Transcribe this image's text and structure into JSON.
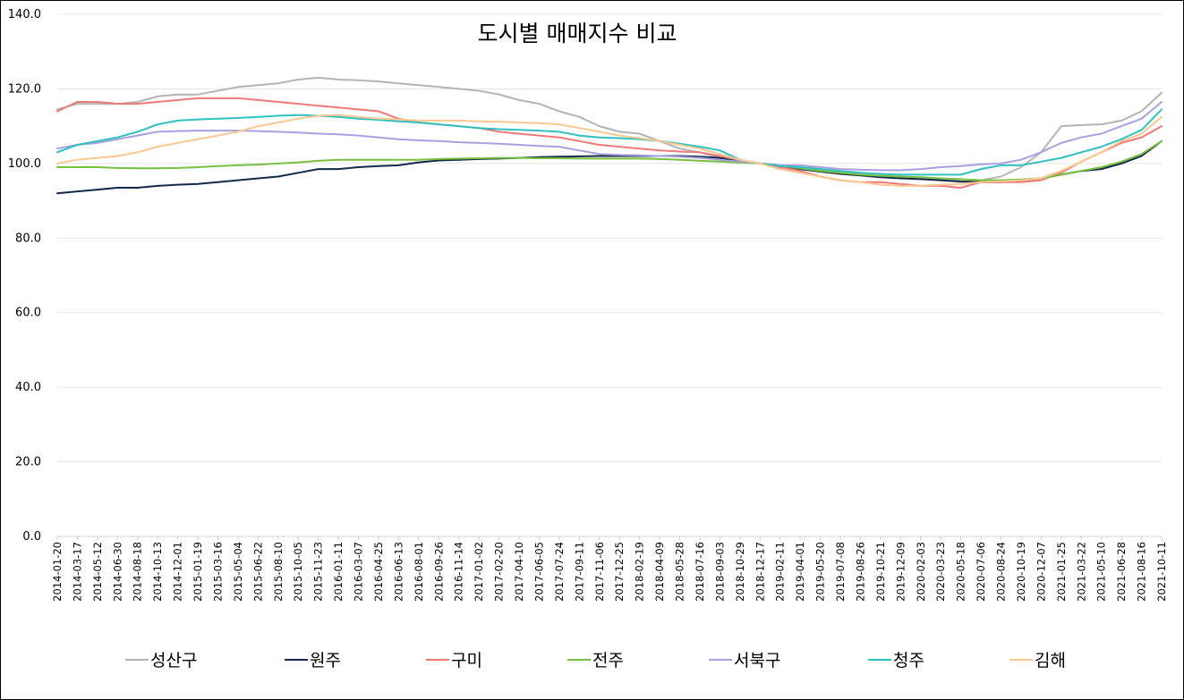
{
  "chart_data": {
    "type": "line",
    "title": "도시별 매매지수 비교",
    "xlabel": "",
    "ylabel": "",
    "ylim": [
      0,
      140
    ],
    "yticks": [
      "0.0",
      "20.0",
      "40.0",
      "60.0",
      "80.0",
      "100.0",
      "120.0",
      "140.0"
    ],
    "grid": true,
    "legend_position": "bottom",
    "x": [
      "2014-01-20",
      "2014-03-17",
      "2014-05-12",
      "2014-06-30",
      "2014-08-18",
      "2014-10-13",
      "2014-12-01",
      "2015-01-19",
      "2015-03-16",
      "2015-05-04",
      "2015-06-22",
      "2015-08-10",
      "2015-10-05",
      "2015-11-23",
      "2016-01-11",
      "2016-03-07",
      "2016-04-25",
      "2016-06-13",
      "2016-08-01",
      "2016-09-26",
      "2016-11-14",
      "2017-01-02",
      "2017-02-20",
      "2017-04-10",
      "2017-06-05",
      "2017-07-24",
      "2017-09-11",
      "2017-11-06",
      "2017-12-25",
      "2018-02-19",
      "2018-04-09",
      "2018-05-28",
      "2018-07-16",
      "2018-09-03",
      "2018-10-29",
      "2018-12-17",
      "2019-02-11",
      "2019-04-01",
      "2019-05-20",
      "2019-07-08",
      "2019-08-26",
      "2019-10-21",
      "2019-12-09",
      "2020-02-03",
      "2020-03-23",
      "2020-05-18",
      "2020-07-06",
      "2020-08-24",
      "2020-10-19",
      "2020-12-07",
      "2021-01-25",
      "2021-03-22",
      "2021-05-10",
      "2021-06-28",
      "2021-08-16",
      "2021-10-11"
    ],
    "series": [
      {
        "name": "성산구",
        "color": "#b4b4b4",
        "values": [
          114.5,
          116,
          116,
          116,
          116.5,
          118,
          118.5,
          118.5,
          119.5,
          120.5,
          121,
          121.5,
          122.5,
          123,
          122.5,
          122.3,
          122,
          121.5,
          121,
          120.5,
          120,
          119.5,
          118.5,
          117,
          116,
          114,
          112.5,
          110,
          108.5,
          108,
          106,
          104,
          103,
          101.5,
          100.5,
          100,
          99.5,
          99,
          98.5,
          97.5,
          97,
          96.5,
          96,
          96,
          95.5,
          95,
          95.5,
          96.5,
          99,
          103,
          110,
          110.3,
          110.5,
          111.5,
          114,
          119
        ]
      },
      {
        "name": "원주",
        "color": "#14284a",
        "values": [
          92,
          92.5,
          93,
          93.5,
          93.5,
          94,
          94.3,
          94.5,
          95,
          95.5,
          96,
          96.5,
          97.5,
          98.5,
          98.5,
          99,
          99.3,
          99.5,
          100.3,
          100.8,
          101,
          101.2,
          101.3,
          101.5,
          101.7,
          101.8,
          101.9,
          102,
          102,
          102,
          102,
          102,
          101.8,
          101.5,
          100.5,
          100,
          99.5,
          98.5,
          97.8,
          97.2,
          96.8,
          96.3,
          96,
          95.8,
          95.5,
          95.2,
          95,
          95,
          95.5,
          96,
          97,
          98,
          98.5,
          100,
          102,
          106
        ]
      },
      {
        "name": "구미",
        "color": "#f07878",
        "values": [
          114,
          116.5,
          116.5,
          116,
          116,
          116.5,
          117,
          117.5,
          117.5,
          117.5,
          117,
          116.5,
          116,
          115.5,
          115,
          114.5,
          114,
          112,
          111,
          110.5,
          110,
          109.5,
          108.5,
          108,
          107.5,
          107,
          106,
          105,
          104.5,
          104,
          103.5,
          103.2,
          103,
          102,
          101,
          100,
          99,
          98,
          96.5,
          95.5,
          95,
          95,
          94.5,
          94,
          94,
          93.5,
          95,
          95,
          95,
          95.5,
          97.5,
          100.5,
          103,
          105.5,
          107,
          110
        ]
      },
      {
        "name": "전주",
        "color": "#78c040",
        "values": [
          99,
          99,
          99,
          98.8,
          98.7,
          98.7,
          98.8,
          99,
          99.3,
          99.5,
          99.7,
          100,
          100.3,
          100.7,
          101,
          101,
          101,
          101,
          101,
          101.2,
          101.3,
          101.4,
          101.5,
          101.5,
          101.4,
          101.4,
          101.3,
          101.3,
          101.3,
          101.3,
          101.2,
          101,
          100.7,
          100.5,
          100.2,
          100,
          99.5,
          98.7,
          98,
          97.5,
          97,
          96.7,
          96.5,
          96.3,
          96,
          95.8,
          95.5,
          95.5,
          95.7,
          96,
          97,
          98,
          99,
          100.5,
          102.5,
          106
        ]
      },
      {
        "name": "서북구",
        "color": "#a8a0e0",
        "values": [
          104,
          105,
          105.5,
          106.5,
          107.5,
          108.5,
          108.7,
          108.8,
          108.8,
          108.8,
          108.7,
          108.5,
          108.3,
          108,
          107.8,
          107.5,
          107,
          106.5,
          106.2,
          106,
          105.7,
          105.5,
          105.3,
          105,
          104.7,
          104.5,
          103.5,
          102.5,
          102.3,
          102.2,
          102,
          101.8,
          101.5,
          101,
          100.5,
          100,
          99.5,
          99.5,
          99,
          98.5,
          98.3,
          98.2,
          98.2,
          98.5,
          99,
          99.3,
          99.8,
          100,
          101,
          103,
          105.5,
          107,
          108,
          110,
          112,
          116.5
        ]
      },
      {
        "name": "청주",
        "color": "#30c0c0",
        "values": [
          103,
          105,
          106,
          107,
          108.5,
          110.5,
          111.5,
          111.8,
          112,
          112.2,
          112.5,
          112.8,
          113,
          112.8,
          112.5,
          112,
          111.7,
          111.3,
          111,
          110.5,
          110,
          109.5,
          109.2,
          109,
          108.8,
          108.5,
          107.5,
          107,
          106.8,
          106.5,
          106,
          105.3,
          104.5,
          103.5,
          101,
          100,
          99.3,
          99,
          98.5,
          98,
          97.5,
          97.2,
          97,
          97,
          97,
          97,
          98.5,
          99.5,
          99.5,
          100.5,
          101.5,
          103,
          104.5,
          106.5,
          109,
          114.5
        ]
      },
      {
        "name": "김해",
        "color": "#f8c890",
        "values": [
          100,
          101,
          101.5,
          102,
          103,
          104.5,
          105.5,
          106.5,
          107.5,
          108.5,
          110,
          111,
          112,
          112.8,
          113,
          112.5,
          112,
          111.8,
          111.5,
          111.5,
          111.5,
          111.3,
          111.2,
          111,
          110.8,
          110.5,
          109.5,
          108.5,
          107.5,
          106.8,
          106,
          105,
          104,
          102.5,
          101,
          100,
          98.5,
          97.5,
          96.5,
          95.5,
          95,
          94.3,
          94,
          94,
          94.3,
          94.5,
          95,
          95.2,
          95.5,
          96,
          98,
          100.5,
          103,
          106,
          108,
          112.5
        ]
      }
    ]
  }
}
